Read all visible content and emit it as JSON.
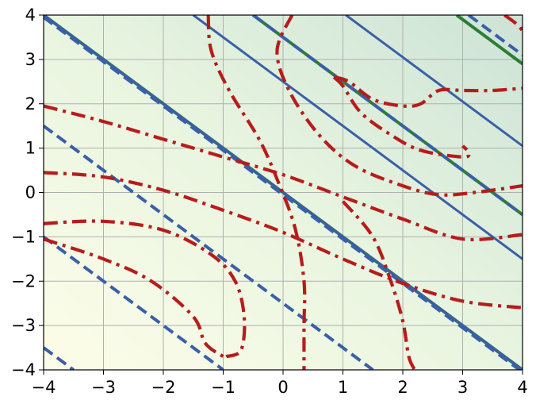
{
  "chart_data": {
    "type": "contour",
    "xlim": [
      -4,
      4
    ],
    "ylim": [
      -4,
      4
    ],
    "x_ticks": [
      -4,
      -3,
      -2,
      -1,
      0,
      1,
      2,
      3,
      4
    ],
    "y_ticks": [
      -4,
      -3,
      -2,
      -1,
      0,
      1,
      2,
      3,
      4
    ],
    "x_tick_labels": [
      "−4",
      "−3",
      "−2",
      "−1",
      "0",
      "1",
      "2",
      "3",
      "4"
    ],
    "y_tick_labels": [
      "−4",
      "−3",
      "−2",
      "−1",
      "0",
      "1",
      "2",
      "3",
      "4"
    ],
    "grid": true,
    "background_colormap": [
      "#fdfde9",
      "#e8f5e0",
      "#cde3d6"
    ],
    "colors": {
      "green_lines": "#2e7d32",
      "blue_dashed": "#3a5fa8",
      "red_dashdot": "#b71c1c",
      "grid": "#b0b0b0",
      "axes": "#000000"
    },
    "series": [
      {
        "style": "green-solid",
        "lines": [
          [
            [
              -4,
              4
            ],
            [
              4,
              -4
            ]
          ],
          [
            [
              -0.5,
              4
            ],
            [
              4,
              -0.5
            ]
          ],
          [
            [
              2.9,
              4
            ],
            [
              4,
              2.9
            ]
          ]
        ]
      },
      {
        "style": "blue-solid",
        "lines": [
          [
            [
              -4,
              4
            ],
            [
              4,
              -4
            ]
          ],
          [
            [
              -1.5,
              4
            ],
            [
              4,
              -1.5
            ]
          ],
          [
            [
              1.05,
              4
            ],
            [
              4,
              1.05
            ]
          ]
        ]
      },
      {
        "style": "blue-dashed",
        "lines": [
          [
            [
              -4,
              3.95
            ],
            [
              4,
              -4.05
            ]
          ],
          [
            [
              -4,
              1.5
            ],
            [
              1.5,
              -4
            ]
          ],
          [
            [
              -4,
              -1.0
            ],
            [
              -1.0,
              -4
            ]
          ],
          [
            [
              -4,
              -3.5
            ],
            [
              -3.5,
              -4
            ]
          ],
          [
            [
              -0.5,
              4
            ],
            [
              4,
              -0.5
            ]
          ],
          [
            [
              3.1,
              4
            ],
            [
              4,
              3.1
            ]
          ]
        ]
      },
      {
        "style": "red-dashdot",
        "curves": [
          [
            [
              -4,
              1.95
            ],
            [
              -3.0,
              1.6
            ],
            [
              -2.0,
              1.2
            ],
            [
              -1.0,
              0.8
            ],
            [
              0.0,
              0.4
            ],
            [
              1.0,
              -0.1
            ],
            [
              2.0,
              -0.6
            ],
            [
              3.0,
              -1.05
            ],
            [
              4.0,
              -0.95
            ]
          ],
          [
            [
              -4,
              0.45
            ],
            [
              -3.0,
              0.35
            ],
            [
              -2.0,
              0.05
            ],
            [
              -1.0,
              -0.4
            ],
            [
              0.0,
              -0.9
            ],
            [
              1.0,
              -1.5
            ],
            [
              2.0,
              -2.05
            ],
            [
              3.0,
              -2.45
            ],
            [
              4.0,
              -2.6
            ]
          ],
          [
            [
              -4,
              -0.7
            ],
            [
              -3.0,
              -0.65
            ],
            [
              -2.0,
              -0.85
            ],
            [
              -1.2,
              -1.4
            ],
            [
              -0.8,
              -2.0
            ],
            [
              -0.65,
              -2.8
            ],
            [
              -0.7,
              -3.55
            ],
            [
              -0.95,
              -3.7
            ]
          ],
          [
            [
              -4,
              -1.05
            ],
            [
              -3.0,
              -1.5
            ],
            [
              -2.2,
              -2.0
            ],
            [
              -1.5,
              -2.8
            ],
            [
              -1.3,
              -3.4
            ],
            [
              -1.0,
              -3.7
            ]
          ],
          [
            [
              -1.25,
              4
            ],
            [
              -1.2,
              3.2
            ],
            [
              -0.9,
              2.3
            ],
            [
              -0.4,
              1.2
            ],
            [
              -0.1,
              0.3
            ],
            [
              0.2,
              -0.8
            ],
            [
              0.35,
              -2.0
            ],
            [
              0.35,
              -3.0
            ],
            [
              0.35,
              -4
            ]
          ],
          [
            [
              0.15,
              4
            ],
            [
              -0.1,
              3.2
            ],
            [
              0.1,
              2.3
            ],
            [
              0.6,
              1.3
            ],
            [
              1.2,
              0.6
            ],
            [
              2.0,
              0.15
            ],
            [
              2.6,
              -0.05
            ],
            [
              3.2,
              0.0
            ],
            [
              4.0,
              0.15
            ]
          ],
          [
            [
              1.0,
              -0.2
            ],
            [
              1.5,
              -1.0
            ],
            [
              1.8,
              -2.0
            ],
            [
              2.0,
              -2.9
            ],
            [
              2.1,
              -3.7
            ],
            [
              2.2,
              -4
            ]
          ],
          [
            [
              0.85,
              2.6
            ],
            [
              1.0,
              2.4
            ],
            [
              1.3,
              1.8
            ],
            [
              1.8,
              1.3
            ],
            [
              2.3,
              0.95
            ],
            [
              3.0,
              0.8
            ],
            [
              3.1,
              0.9
            ],
            [
              3.0,
              1.05
            ]
          ],
          [
            [
              0.85,
              2.6
            ],
            [
              1.1,
              2.5
            ],
            [
              1.5,
              2.1
            ],
            [
              2.0,
              1.95
            ],
            [
              2.3,
              2.0
            ],
            [
              2.6,
              2.3
            ],
            [
              3.0,
              2.3
            ],
            [
              3.5,
              2.3
            ],
            [
              4.0,
              2.35
            ]
          ],
          [
            [
              3.7,
              4
            ],
            [
              3.9,
              3.8
            ],
            [
              4.0,
              3.65
            ]
          ],
          [
            [
              -4,
              4.2
            ],
            [
              4,
              4.2
            ]
          ]
        ]
      }
    ]
  }
}
